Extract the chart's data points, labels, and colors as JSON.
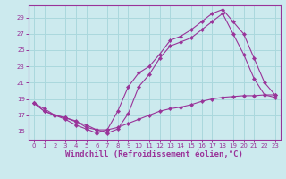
{
  "bg_color": "#cceaee",
  "grid_color": "#aad8dd",
  "line_color": "#993399",
  "marker_color": "#993399",
  "xlabel": "Windchill (Refroidissement éolien,°C)",
  "xlabel_fontsize": 6.5,
  "yticks": [
    15,
    17,
    19,
    21,
    23,
    25,
    27,
    29
  ],
  "xlim": [
    -0.5,
    23.5
  ],
  "ylim": [
    14.0,
    30.5
  ],
  "line1_x": [
    0,
    1,
    2,
    3,
    4,
    5,
    6,
    7,
    8,
    9,
    10,
    11,
    12,
    13,
    14,
    15,
    16,
    17,
    18,
    19,
    20,
    21,
    22,
    23
  ],
  "line1_y": [
    18.5,
    17.8,
    17.0,
    16.7,
    16.3,
    15.5,
    15.2,
    15.2,
    15.5,
    16.0,
    16.5,
    17.0,
    17.5,
    17.8,
    18.0,
    18.3,
    18.7,
    19.0,
    19.2,
    19.3,
    19.4,
    19.4,
    19.5,
    19.5
  ],
  "line2_x": [
    0,
    1,
    2,
    3,
    4,
    5,
    6,
    7,
    8,
    9,
    10,
    11,
    12,
    13,
    14,
    15,
    16,
    17,
    18,
    19,
    20,
    21,
    22,
    23
  ],
  "line2_y": [
    18.5,
    17.5,
    17.0,
    16.5,
    15.8,
    15.3,
    14.8,
    15.2,
    17.5,
    20.5,
    22.2,
    23.0,
    24.5,
    26.2,
    26.7,
    27.5,
    28.5,
    29.5,
    30.0,
    28.5,
    27.0,
    24.0,
    21.0,
    19.5
  ],
  "line3_x": [
    0,
    1,
    2,
    3,
    4,
    5,
    6,
    7,
    8,
    9,
    10,
    11,
    12,
    13,
    14,
    15,
    16,
    17,
    18,
    19,
    20,
    21,
    22,
    23
  ],
  "line3_y": [
    18.5,
    17.5,
    17.0,
    16.7,
    16.2,
    15.8,
    15.2,
    14.8,
    15.3,
    17.2,
    20.5,
    22.0,
    24.0,
    25.5,
    26.0,
    26.5,
    27.5,
    28.5,
    29.5,
    27.0,
    24.5,
    21.5,
    19.5,
    19.2
  ]
}
